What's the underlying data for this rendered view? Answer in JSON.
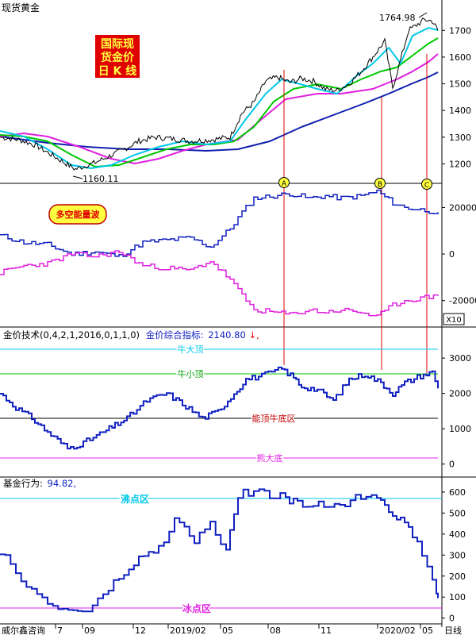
{
  "app": {
    "title": "现货黄金",
    "footer_left": "威尔鑫咨询",
    "footer_right": "日线",
    "x_ticks": [
      "7",
      "09",
      "12",
      "2019/02",
      "05",
      "08",
      "11",
      "2020/02",
      "05"
    ]
  },
  "colors": {
    "price": "#000000",
    "ma_fast": "#00c8e8",
    "ma_mid": "#00c800",
    "ma_slow": "#e020e0",
    "ma_long": "#1020b0",
    "line_blue": "#1020c0",
    "magenta": "#e020e0",
    "marker_red": "#e00000",
    "badge_fill": "#ffff40",
    "title_box": "#e00000",
    "title_text": "#ffff40"
  },
  "panel1": {
    "badge_text": "国际现货金价日K线",
    "badge_lines": [
      "国际现",
      "货金价",
      "日 K 线"
    ],
    "high_label": "1764.98",
    "low_label": "1160.11",
    "markers": [
      "A",
      "B",
      "C"
    ],
    "yticks": [
      "1700",
      "1600",
      "1500",
      "1400",
      "1300",
      "1200"
    ]
  },
  "panel2": {
    "badge_text": "多空能量波",
    "yticks": [
      "20000",
      "0",
      "-20000"
    ],
    "scale_label": "X10"
  },
  "panel3": {
    "title_prefix": "金价技术(0,4,2,1,2016,0,1,1,0)",
    "title_name": "金价综合指标:",
    "title_value": "2140.80",
    "arrow": "↓,",
    "line_labels": {
      "top_big": "牛大顶",
      "top_small": "牛小顶",
      "mid": "能顶牛底区",
      "bottom": "熊大底"
    },
    "yticks": [
      "3000",
      "2000",
      "1000",
      "0"
    ]
  },
  "panel4": {
    "title_name": "基金行为:",
    "title_value": "94.82,",
    "zone_high": "沸点区",
    "zone_low": "冰点区",
    "yticks": [
      "600",
      "500",
      "400",
      "300",
      "200",
      "100",
      "0"
    ]
  },
  "chart_data": [
    {
      "type": "line",
      "title": "国际现货金价日K线",
      "ylim": [
        1130,
        1790
      ],
      "x": [
        0,
        25,
        45,
        70,
        95,
        120,
        150,
        175,
        195,
        215,
        240,
        265,
        290,
        305,
        320,
        335,
        350,
        365,
        380,
        395,
        410,
        425,
        440,
        455,
        470,
        485,
        495,
        505,
        515,
        525,
        535,
        545,
        552
      ],
      "series": [
        {
          "values": [
            1300,
            1290,
            1270,
            1225,
            1180,
            1205,
            1245,
            1285,
            1300,
            1295,
            1285,
            1290,
            1300,
            1390,
            1430,
            1510,
            1525,
            1505,
            1520,
            1510,
            1480,
            1475,
            1500,
            1545,
            1600,
            1660,
            1485,
            1590,
            1700,
            1720,
            1740,
            1735,
            1700
          ]
        }
      ],
      "annotations": [
        "1764.98",
        "1160.11",
        "A",
        "B",
        "C"
      ]
    },
    {
      "type": "line",
      "title": "多空能量波",
      "ylim": [
        -30000,
        28000
      ],
      "x": [
        0,
        30,
        60,
        90,
        120,
        150,
        180,
        210,
        240,
        265,
        290,
        305,
        320,
        345,
        365,
        390,
        410,
        430,
        455,
        475,
        495,
        510,
        530,
        552
      ],
      "series": [
        {
          "values": [
            8000,
            5000,
            4000,
            0,
            1000,
            -1000,
            5000,
            6000,
            7000,
            3000,
            11000,
            18000,
            24000,
            25000,
            26000,
            24000,
            25000,
            24000,
            25000,
            27000,
            22000,
            20000,
            19000,
            18000
          ]
        },
        {
          "values": [
            -8000,
            -5000,
            -4000,
            0,
            -1000,
            1000,
            -5000,
            -6000,
            -7000,
            -3000,
            -11000,
            -18000,
            -24000,
            -25000,
            -26000,
            -24000,
            -25000,
            -24000,
            -25000,
            -27000,
            -22000,
            -20000,
            -19000,
            -18000
          ]
        }
      ],
      "annotations": [
        "X10"
      ]
    },
    {
      "type": "line",
      "title": "金价综合指标",
      "ylim": [
        -300,
        3700
      ],
      "x": [
        0,
        20,
        40,
        60,
        85,
        105,
        130,
        160,
        185,
        210,
        230,
        255,
        275,
        295,
        310,
        330,
        355,
        370,
        380,
        400,
        420,
        440,
        460,
        480,
        495,
        510,
        530,
        545,
        552
      ],
      "series": [
        {
          "name": "金价综合指标",
          "values": [
            2000,
            1600,
            1300,
            900,
            450,
            600,
            900,
            1300,
            1800,
            2000,
            1700,
            1300,
            1500,
            2000,
            2400,
            2500,
            2700,
            2450,
            2200,
            2100,
            1800,
            2400,
            2550,
            2300,
            2000,
            2300,
            2500,
            2600,
            2140.8
          ]
        }
      ],
      "reference_lines": {
        "牛大顶": 3270,
        "牛小顶": 2600,
        "能顶牛底区": 1260,
        "熊大底": 90
      }
    },
    {
      "type": "line",
      "title": "基金行为",
      "ylim": [
        -20,
        660
      ],
      "x": [
        0,
        20,
        40,
        60,
        80,
        110,
        130,
        150,
        175,
        200,
        220,
        245,
        265,
        285,
        300,
        320,
        340,
        360,
        375,
        395,
        415,
        435,
        455,
        475,
        490,
        505,
        520,
        532,
        545,
        550,
        552
      ],
      "series": [
        {
          "name": "基金行为",
          "values": [
            320,
            200,
            150,
            60,
            40,
            35,
            110,
            190,
            280,
            330,
            470,
            370,
            450,
            310,
            590,
            600,
            590,
            570,
            540,
            540,
            540,
            550,
            580,
            590,
            520,
            470,
            390,
            300,
            200,
            100,
            94.82
          ]
        }
      ],
      "reference_lines": {
        "沸点区": 563,
        "冰点区": 58
      }
    }
  ]
}
